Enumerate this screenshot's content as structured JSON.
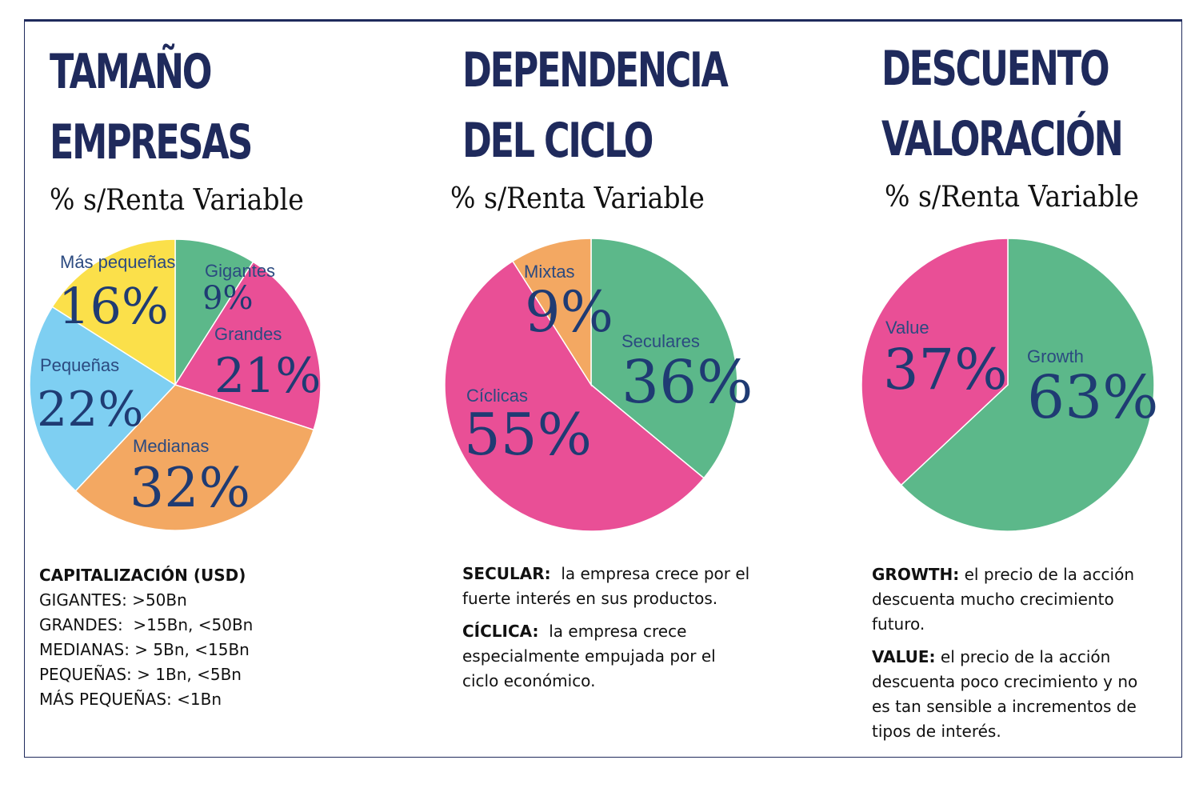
{
  "subtitle": "% s/Renta Variable",
  "panels": [
    {
      "title_lines": [
        "TAMAÑO",
        "EMPRESAS"
      ],
      "subtitle": "% s/Renta Variable",
      "notes_heading": "CAPITALIZACIÓN (USD)",
      "notes_lines": [
        "GIGANTES: >50Bn",
        "GRANDES:  >15Bn, <50Bn",
        "MEDIANAS: > 5Bn, <15Bn",
        "PEQUEÑAS: > 1Bn, <5Bn",
        "MÁS PEQUEÑAS: <1Bn"
      ]
    },
    {
      "title_lines": [
        "DEPENDENCIA",
        "DEL CICLO"
      ],
      "subtitle": "% s/Renta Variable",
      "notes": [
        {
          "term": "SECULAR:",
          "text": " la empresa crece por el fuerte interés en sus productos."
        },
        {
          "term": "CÍCLICA:",
          "text": " la empresa crece especialmente empujada por el ciclo económico."
        }
      ],
      "notes_lines": [
        [
          "SECULAR:",
          "  la empresa crece por el"
        ],
        [
          "",
          "fuerte interés en sus productos."
        ],
        [
          "CÍCLICA:",
          "  la empresa crece"
        ],
        [
          "",
          "especialmente empujada por el"
        ],
        [
          "",
          "ciclo económico."
        ]
      ]
    },
    {
      "title_lines": [
        "DESCUENTO",
        "VALORACIÓN"
      ],
      "subtitle": "% s/Renta Variable",
      "notes_lines": [
        [
          "GROWTH:",
          " el precio de la acción"
        ],
        [
          "",
          "descuenta mucho crecimiento"
        ],
        [
          "",
          "futuro."
        ],
        [
          "VALUE:",
          " el precio de la acción"
        ],
        [
          "",
          "descuenta poco crecimiento y no"
        ],
        [
          "",
          "es tan sensible a incrementos de"
        ],
        [
          "",
          "tipos de interés."
        ]
      ]
    }
  ],
  "chart_data": [
    {
      "type": "pie",
      "title": "TAMAÑO EMPRESAS",
      "subtitle": "% s/Renta Variable",
      "categories": [
        "Gigantes",
        "Grandes",
        "Medianas",
        "Pequeñas",
        "Más pequeñas"
      ],
      "values": [
        9,
        21,
        32,
        22,
        16
      ],
      "labels": [
        "9%",
        "21%",
        "32%",
        "22%",
        "16%"
      ],
      "colors": [
        "#5cb88a",
        "#e94f96",
        "#f3a862",
        "#7ecff2",
        "#fbe04a"
      ],
      "start": "12 o'clock, clockwise"
    },
    {
      "type": "pie",
      "title": "DEPENDENCIA DEL CICLO",
      "subtitle": "% s/Renta Variable",
      "categories": [
        "Seculares",
        "Cíclicas",
        "Mixtas"
      ],
      "values": [
        36,
        55,
        9
      ],
      "labels": [
        "36%",
        "55%",
        "9%"
      ],
      "colors": [
        "#5cb88a",
        "#e94f96",
        "#f3a862"
      ],
      "start": "12 o'clock, clockwise"
    },
    {
      "type": "pie",
      "title": "DESCUENTO VALORACIÓN",
      "subtitle": "% s/Renta Variable",
      "categories": [
        "Growth",
        "Value"
      ],
      "values": [
        63,
        37
      ],
      "labels": [
        "63%",
        "37%"
      ],
      "colors": [
        "#5cb88a",
        "#e94f96"
      ],
      "start": "12 o'clock, clockwise"
    }
  ]
}
